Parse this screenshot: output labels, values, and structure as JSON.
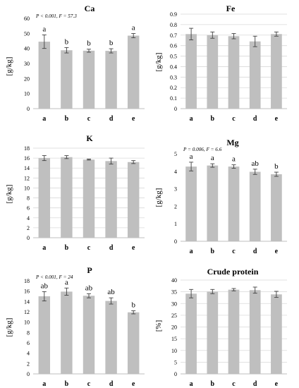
{
  "figure": {
    "colors": {
      "bar": "#bfbfbf",
      "gridline": "#d9d9d9",
      "axis": "#bfbfbf",
      "error_bar": "#404040",
      "background": "#ffffff"
    }
  },
  "chart_data": [
    {
      "type": "bar",
      "title": "Ca",
      "ylabel": "[g/kg]",
      "xlabel": "",
      "categories": [
        "a",
        "b",
        "c",
        "d",
        "e"
      ],
      "values": [
        44.5,
        38.8,
        38.5,
        38.4,
        48.5
      ],
      "error": [
        4.5,
        1.8,
        1.0,
        1.4,
        1.4
      ],
      "significance_letters": [
        "a",
        "b",
        "b",
        "b",
        "a"
      ],
      "annotation": "P < 0.001, F = 57.3",
      "ylim": [
        0,
        60
      ],
      "yticks": [
        0,
        10,
        20,
        30,
        40,
        50,
        60
      ],
      "ytick_labels": [
        "0",
        "10",
        "20",
        "30",
        "40",
        "50",
        "60"
      ],
      "grid": false,
      "legend": "none"
    },
    {
      "type": "bar",
      "title": "Fe",
      "ylabel": "[g/kg]",
      "xlabel": "",
      "categories": [
        "a",
        "b",
        "c",
        "d",
        "e"
      ],
      "values": [
        0.71,
        0.7,
        0.69,
        0.64,
        0.71
      ],
      "error": [
        0.055,
        0.03,
        0.025,
        0.05,
        0.02
      ],
      "significance_letters": [],
      "annotation": "",
      "ylim": [
        0,
        0.9
      ],
      "yticks": [
        0,
        0.1,
        0.2,
        0.3,
        0.4,
        0.5,
        0.6,
        0.7,
        0.8,
        0.9
      ],
      "ytick_labels": [
        "0",
        "0.1",
        "0.2",
        "0.3",
        "0.4",
        "0.5",
        "0.6",
        "0.7",
        "0.8",
        "0.9"
      ],
      "grid": true,
      "legend": "none"
    },
    {
      "type": "bar",
      "title": "K",
      "ylabel": "[g/kg]",
      "xlabel": "",
      "categories": [
        "a",
        "b",
        "c",
        "d",
        "e"
      ],
      "values": [
        16.0,
        16.2,
        15.7,
        15.4,
        15.2
      ],
      "error": [
        0.5,
        0.3,
        0.1,
        0.6,
        0.3
      ],
      "significance_letters": [],
      "annotation": "",
      "ylim": [
        0,
        18
      ],
      "yticks": [
        0,
        2,
        4,
        6,
        8,
        10,
        12,
        14,
        16,
        18
      ],
      "ytick_labels": [
        "0",
        "2",
        "4",
        "6",
        "8",
        "10",
        "12",
        "14",
        "16",
        "18"
      ],
      "grid": true,
      "legend": "none"
    },
    {
      "type": "bar",
      "title": "Mg",
      "ylabel": "[g/kg]",
      "xlabel": "",
      "categories": [
        "a",
        "b",
        "c",
        "d",
        "e"
      ],
      "values": [
        4.27,
        4.33,
        4.27,
        3.97,
        3.83
      ],
      "error": [
        0.25,
        0.1,
        0.1,
        0.15,
        0.12
      ],
      "significance_letters": [
        "a",
        "a",
        "a",
        "ab",
        "b"
      ],
      "annotation": "P = 0.006, F = 6.6",
      "ylim": [
        0,
        5
      ],
      "yticks": [
        0,
        1,
        2,
        3,
        4,
        5
      ],
      "ytick_labels": [
        "0",
        "1",
        "2",
        "3",
        "4",
        "5"
      ],
      "grid": false,
      "legend": "none"
    },
    {
      "type": "bar",
      "title": "P",
      "ylabel": "[g/kg]",
      "xlabel": "",
      "categories": [
        "a",
        "b",
        "c",
        "d",
        "e"
      ],
      "values": [
        15.0,
        15.9,
        15.1,
        14.1,
        11.9
      ],
      "error": [
        0.9,
        0.7,
        0.4,
        0.6,
        0.3
      ],
      "significance_letters": [
        "ab",
        "a",
        "ab",
        "ab",
        "b"
      ],
      "annotation": "P < 0.001, F = 24",
      "ylim": [
        0,
        18
      ],
      "yticks": [
        0,
        2,
        4,
        6,
        8,
        10,
        12,
        14,
        16,
        18
      ],
      "ytick_labels": [
        "0",
        "2",
        "4",
        "6",
        "8",
        "10",
        "12",
        "14",
        "16",
        "18"
      ],
      "grid": false,
      "legend": "none"
    },
    {
      "type": "bar",
      "title": "Crude protein",
      "ylabel": "[%]",
      "xlabel": "",
      "categories": [
        "a",
        "b",
        "c",
        "d",
        "e"
      ],
      "values": [
        34.2,
        35.1,
        35.9,
        35.7,
        33.9
      ],
      "error": [
        1.8,
        0.9,
        0.5,
        1.3,
        1.3
      ],
      "significance_letters": [],
      "annotation": "",
      "ylim": [
        0,
        40
      ],
      "yticks": [
        0,
        5,
        10,
        15,
        20,
        25,
        30,
        35,
        40
      ],
      "ytick_labels": [
        "0",
        "5",
        "10",
        "15",
        "20",
        "25",
        "30",
        "35",
        "40"
      ],
      "grid": true,
      "legend": "none"
    }
  ]
}
